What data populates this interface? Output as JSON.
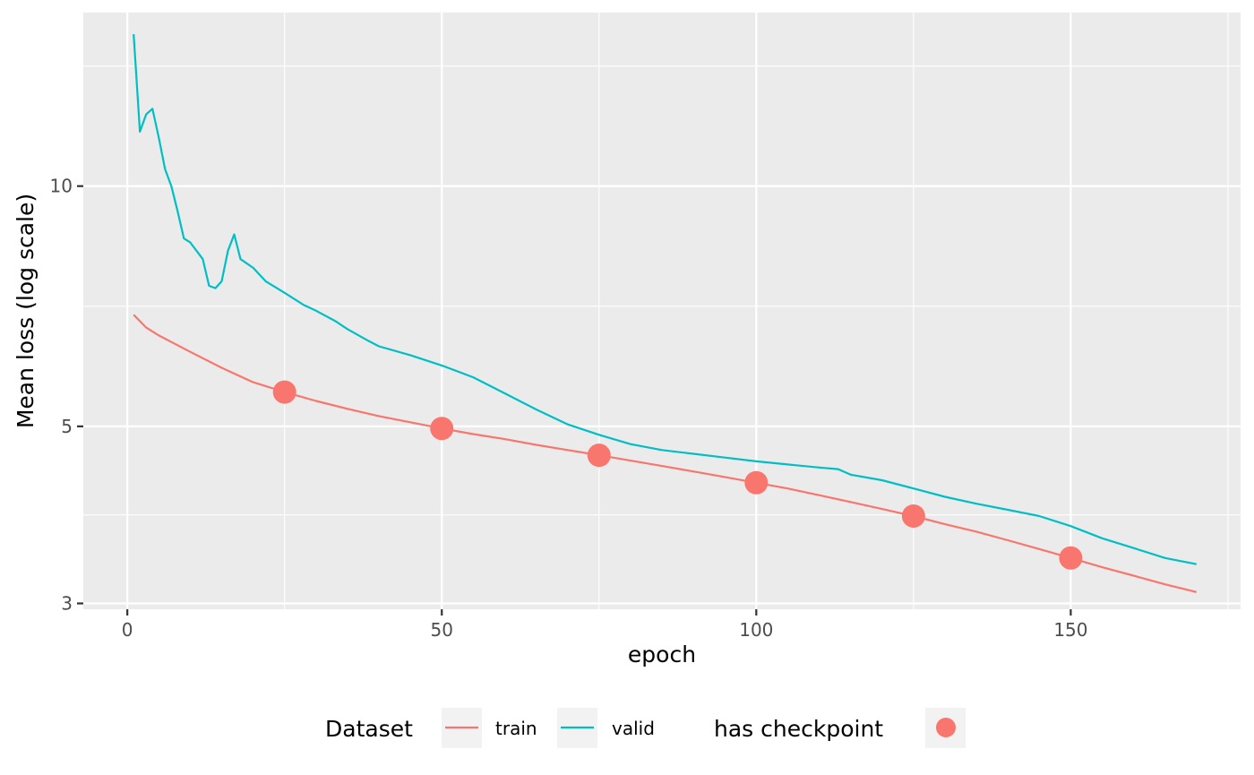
{
  "chart_data": {
    "type": "line",
    "xlabel": "epoch",
    "ylabel": "Mean loss (log scale)",
    "y_scale": "log",
    "xlim": [
      -7,
      177
    ],
    "ylim": [
      2.95,
      16.5
    ],
    "x_ticks": [
      0,
      50,
      100,
      150
    ],
    "y_ticks": [
      3,
      5,
      10
    ],
    "x_tick_labels": [
      "0",
      "50",
      "100",
      "150"
    ],
    "y_tick_labels": [
      "3",
      "5",
      "10"
    ],
    "grid": true,
    "legend_position": "bottom",
    "series": [
      {
        "name": "train",
        "color": "#F8766D",
        "points": [
          [
            1,
            6.9
          ],
          [
            3,
            6.65
          ],
          [
            5,
            6.5
          ],
          [
            10,
            6.2
          ],
          [
            15,
            5.92
          ],
          [
            20,
            5.68
          ],
          [
            25,
            5.52
          ],
          [
            30,
            5.38
          ],
          [
            35,
            5.26
          ],
          [
            40,
            5.15
          ],
          [
            45,
            5.06
          ],
          [
            50,
            4.97
          ],
          [
            55,
            4.89
          ],
          [
            60,
            4.82
          ],
          [
            65,
            4.74
          ],
          [
            70,
            4.67
          ],
          [
            75,
            4.6
          ],
          [
            80,
            4.53
          ],
          [
            85,
            4.46
          ],
          [
            90,
            4.39
          ],
          [
            95,
            4.32
          ],
          [
            100,
            4.25
          ],
          [
            105,
            4.18
          ],
          [
            110,
            4.1
          ],
          [
            115,
            4.02
          ],
          [
            120,
            3.94
          ],
          [
            125,
            3.86
          ],
          [
            130,
            3.77
          ],
          [
            135,
            3.69
          ],
          [
            140,
            3.6
          ],
          [
            145,
            3.51
          ],
          [
            150,
            3.42
          ],
          [
            155,
            3.33
          ],
          [
            160,
            3.25
          ],
          [
            165,
            3.17
          ],
          [
            170,
            3.1
          ]
        ]
      },
      {
        "name": "valid",
        "color": "#00BFC4",
        "points": [
          [
            1,
            15.5
          ],
          [
            2,
            11.7
          ],
          [
            3,
            12.3
          ],
          [
            4,
            12.5
          ],
          [
            5,
            11.5
          ],
          [
            6,
            10.5
          ],
          [
            7,
            10.0
          ],
          [
            8,
            9.3
          ],
          [
            9,
            8.6
          ],
          [
            10,
            8.5
          ],
          [
            12,
            8.1
          ],
          [
            13,
            7.5
          ],
          [
            14,
            7.45
          ],
          [
            15,
            7.6
          ],
          [
            16,
            8.3
          ],
          [
            17,
            8.7
          ],
          [
            18,
            8.1
          ],
          [
            20,
            7.9
          ],
          [
            22,
            7.6
          ],
          [
            25,
            7.35
          ],
          [
            28,
            7.1
          ],
          [
            30,
            6.98
          ],
          [
            33,
            6.78
          ],
          [
            35,
            6.62
          ],
          [
            38,
            6.42
          ],
          [
            40,
            6.3
          ],
          [
            45,
            6.14
          ],
          [
            50,
            5.96
          ],
          [
            55,
            5.76
          ],
          [
            60,
            5.5
          ],
          [
            65,
            5.25
          ],
          [
            70,
            5.03
          ],
          [
            75,
            4.88
          ],
          [
            80,
            4.75
          ],
          [
            85,
            4.67
          ],
          [
            90,
            4.62
          ],
          [
            95,
            4.57
          ],
          [
            100,
            4.52
          ],
          [
            105,
            4.48
          ],
          [
            110,
            4.44
          ],
          [
            113,
            4.42
          ],
          [
            115,
            4.35
          ],
          [
            120,
            4.28
          ],
          [
            125,
            4.18
          ],
          [
            130,
            4.08
          ],
          [
            135,
            4.0
          ],
          [
            140,
            3.93
          ],
          [
            145,
            3.86
          ],
          [
            150,
            3.75
          ],
          [
            155,
            3.62
          ],
          [
            160,
            3.52
          ],
          [
            165,
            3.42
          ],
          [
            170,
            3.36
          ]
        ]
      }
    ],
    "checkpoints": {
      "name": "has checkpoint",
      "color": "#F8766D",
      "points": [
        [
          25,
          5.52
        ],
        [
          50,
          4.97
        ],
        [
          75,
          4.6
        ],
        [
          100,
          4.25
        ],
        [
          125,
          3.86
        ],
        [
          150,
          3.42
        ]
      ]
    },
    "legend": {
      "dataset_title": "Dataset",
      "checkpoint_title": "has checkpoint",
      "entries": [
        "train",
        "valid"
      ]
    }
  }
}
